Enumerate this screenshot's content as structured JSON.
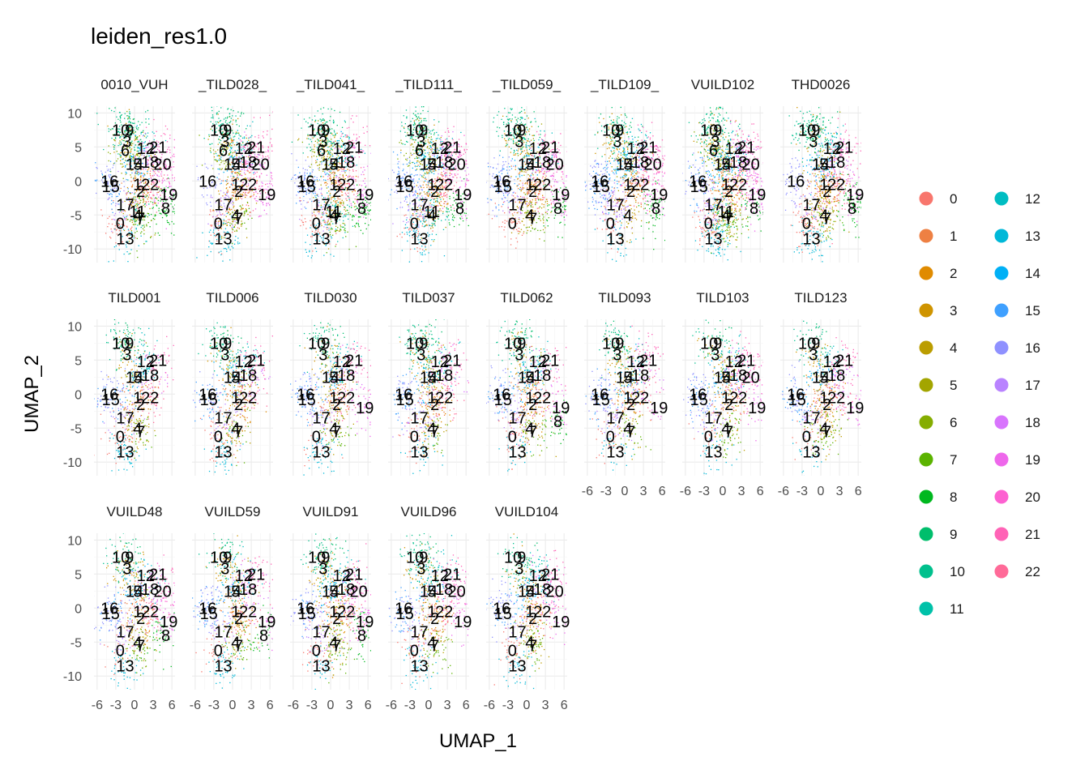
{
  "chart_data": {
    "type": "scatter",
    "title": "leiden_res1.0",
    "xlabel": "UMAP_1",
    "ylabel": "UMAP_2",
    "xlim": [
      -6.5,
      6.5
    ],
    "ylim": [
      -12,
      11
    ],
    "x_ticks": [
      "-6",
      "-3",
      "0",
      "3",
      "6"
    ],
    "y_ticks": [
      "10",
      "5",
      "0",
      "-5",
      "-10"
    ],
    "x_tick_values": [
      -6,
      -3,
      0,
      3,
      6
    ],
    "y_tick_values": [
      10,
      5,
      0,
      -5,
      -10
    ],
    "grid": true,
    "legend_position": "right",
    "legend": {
      "labels": [
        "0",
        "1",
        "2",
        "3",
        "4",
        "5",
        "6",
        "7",
        "8",
        "9",
        "10",
        "11",
        "12",
        "13",
        "14",
        "15",
        "16",
        "17",
        "18",
        "19",
        "20",
        "21",
        "22"
      ],
      "colors": [
        "#F8766D",
        "#EE8043",
        "#E08B00",
        "#CF9400",
        "#BB9D00",
        "#A3A500",
        "#85AD00",
        "#5BB300",
        "#00B81F",
        "#00BE6C",
        "#00C08D",
        "#00C1A9",
        "#00BDC2",
        "#00B8D8",
        "#00B0F6",
        "#3FA0FF",
        "#8F91FF",
        "#B983FF",
        "#D874FD",
        "#EE67EB",
        "#FD61D1",
        "#FF63B6",
        "#FF6A98"
      ]
    },
    "cluster_centers": [
      {
        "cluster": "0",
        "x": -2.3,
        "y": -6.2
      },
      {
        "cluster": "1",
        "x": 0.5,
        "y": -0.5
      },
      {
        "cluster": "2",
        "x": 1.0,
        "y": -1.5
      },
      {
        "cluster": "3",
        "x": -1.2,
        "y": 5.8
      },
      {
        "cluster": "4",
        "x": 0.5,
        "y": -5.0
      },
      {
        "cluster": "5",
        "x": 0.5,
        "y": 2.5
      },
      {
        "cluster": "6",
        "x": -1.5,
        "y": 4.5
      },
      {
        "cluster": "7",
        "x": 1.0,
        "y": -5.5
      },
      {
        "cluster": "8",
        "x": 5.0,
        "y": -4.0
      },
      {
        "cluster": "9",
        "x": -0.8,
        "y": 7.5
      },
      {
        "cluster": "10",
        "x": -2.2,
        "y": 7.5
      },
      {
        "cluster": "11",
        "x": 0.5,
        "y": -4.5
      },
      {
        "cluster": "12",
        "x": 1.8,
        "y": 4.8
      },
      {
        "cluster": "13",
        "x": -1.5,
        "y": -8.5
      },
      {
        "cluster": "14",
        "x": 0.0,
        "y": 2.5
      },
      {
        "cluster": "15",
        "x": -3.8,
        "y": -0.8
      },
      {
        "cluster": "16",
        "x": -4.0,
        "y": 0.0
      },
      {
        "cluster": "17",
        "x": -1.5,
        "y": -3.5
      },
      {
        "cluster": "18",
        "x": 2.5,
        "y": 2.8
      },
      {
        "cluster": "19",
        "x": 5.5,
        "y": -2.0
      },
      {
        "cluster": "20",
        "x": 4.5,
        "y": 2.5
      },
      {
        "cluster": "21",
        "x": 3.8,
        "y": 5.0
      },
      {
        "cluster": "22",
        "x": 2.5,
        "y": -0.5
      }
    ],
    "panels": [
      {
        "name": "0010_VUH",
        "labels": [
          "0",
          "2",
          "3",
          "5",
          "6",
          "9",
          "10",
          "12",
          "13",
          "14",
          "15",
          "16",
          "17",
          "18",
          "19",
          "20",
          "21",
          "22",
          "4",
          "7",
          "8",
          "11",
          "1"
        ]
      },
      {
        "name": "_TILD028_",
        "labels": [
          "0",
          "2",
          "3",
          "5",
          "6",
          "9",
          "10",
          "12",
          "13",
          "14",
          "16",
          "17",
          "18",
          "19",
          "20",
          "21",
          "22",
          "4",
          "7",
          "1"
        ]
      },
      {
        "name": "_TILD041_",
        "labels": [
          "0",
          "2",
          "3",
          "5",
          "6",
          "9",
          "10",
          "12",
          "13",
          "14",
          "15",
          "16",
          "17",
          "18",
          "19",
          "21",
          "22",
          "4",
          "7",
          "8",
          "11",
          "1"
        ]
      },
      {
        "name": "_TILD111_",
        "labels": [
          "0",
          "2",
          "3",
          "5",
          "6",
          "9",
          "10",
          "12",
          "13",
          "14",
          "15",
          "16",
          "17",
          "18",
          "19",
          "20",
          "21",
          "22",
          "4",
          "8",
          "11",
          "1"
        ]
      },
      {
        "name": "_TILD059_",
        "labels": [
          "0",
          "2",
          "3",
          "5",
          "9",
          "10",
          "12",
          "14",
          "15",
          "16",
          "17",
          "18",
          "19",
          "20",
          "21",
          "22",
          "4",
          "7",
          "8",
          "1"
        ]
      },
      {
        "name": "_TILD109_",
        "labels": [
          "0",
          "2",
          "3",
          "5",
          "9",
          "10",
          "12",
          "13",
          "14",
          "15",
          "16",
          "17",
          "18",
          "19",
          "20",
          "21",
          "22",
          "4",
          "8",
          "1"
        ]
      },
      {
        "name": "VUILD102",
        "labels": [
          "0",
          "2",
          "3",
          "5",
          "6",
          "9",
          "10",
          "12",
          "13",
          "14",
          "15",
          "16",
          "17",
          "18",
          "19",
          "20",
          "21",
          "22",
          "4",
          "7",
          "8",
          "11",
          "1"
        ]
      },
      {
        "name": "THD0026",
        "labels": [
          "0",
          "2",
          "3",
          "5",
          "9",
          "10",
          "12",
          "13",
          "14",
          "16",
          "17",
          "18",
          "19",
          "21",
          "22",
          "4",
          "7",
          "8",
          "1"
        ]
      },
      {
        "name": "TILD001",
        "labels": [
          "0",
          "2",
          "3",
          "5",
          "9",
          "10",
          "12",
          "13",
          "14",
          "15",
          "16",
          "17",
          "18",
          "21",
          "22",
          "4",
          "7",
          "1"
        ]
      },
      {
        "name": "TILD006",
        "labels": [
          "0",
          "2",
          "3",
          "5",
          "9",
          "10",
          "12",
          "13",
          "14",
          "15",
          "16",
          "17",
          "18",
          "21",
          "22",
          "4",
          "7",
          "1"
        ]
      },
      {
        "name": "TILD030",
        "labels": [
          "0",
          "2",
          "3",
          "5",
          "9",
          "10",
          "12",
          "13",
          "14",
          "15",
          "16",
          "17",
          "18",
          "19",
          "21",
          "22",
          "4",
          "7",
          "1"
        ]
      },
      {
        "name": "TILD037",
        "labels": [
          "0",
          "2",
          "3",
          "5",
          "9",
          "10",
          "12",
          "13",
          "14",
          "15",
          "16",
          "17",
          "18",
          "21",
          "22",
          "4",
          "7",
          "1"
        ]
      },
      {
        "name": "TILD062",
        "labels": [
          "0",
          "2",
          "3",
          "5",
          "9",
          "10",
          "12",
          "13",
          "14",
          "15",
          "16",
          "17",
          "18",
          "19",
          "21",
          "22",
          "4",
          "7",
          "8",
          "1"
        ]
      },
      {
        "name": "TILD093",
        "labels": [
          "0",
          "2",
          "3",
          "5",
          "9",
          "10",
          "12",
          "13",
          "14",
          "15",
          "16",
          "17",
          "18",
          "19",
          "21",
          "22",
          "4",
          "7",
          "1"
        ]
      },
      {
        "name": "TILD103",
        "labels": [
          "0",
          "2",
          "3",
          "5",
          "9",
          "10",
          "12",
          "13",
          "14",
          "15",
          "16",
          "17",
          "18",
          "19",
          "20",
          "21",
          "22",
          "4",
          "7",
          "1"
        ]
      },
      {
        "name": "TILD123",
        "labels": [
          "0",
          "2",
          "3",
          "5",
          "9",
          "10",
          "12",
          "13",
          "14",
          "15",
          "16",
          "17",
          "18",
          "19",
          "21",
          "22",
          "4",
          "7",
          "1"
        ]
      },
      {
        "name": "VUILD48",
        "labels": [
          "0",
          "2",
          "3",
          "5",
          "9",
          "10",
          "12",
          "13",
          "14",
          "15",
          "16",
          "17",
          "18",
          "19",
          "20",
          "21",
          "22",
          "4",
          "7",
          "8",
          "1"
        ]
      },
      {
        "name": "VUILD59",
        "labels": [
          "0",
          "2",
          "3",
          "5",
          "9",
          "10",
          "12",
          "13",
          "14",
          "15",
          "16",
          "17",
          "18",
          "19",
          "21",
          "22",
          "4",
          "7",
          "8",
          "1"
        ]
      },
      {
        "name": "VUILD91",
        "labels": [
          "0",
          "2",
          "3",
          "5",
          "9",
          "10",
          "12",
          "13",
          "14",
          "15",
          "16",
          "17",
          "18",
          "19",
          "20",
          "21",
          "22",
          "4",
          "7",
          "8",
          "1"
        ]
      },
      {
        "name": "VUILD96",
        "labels": [
          "0",
          "2",
          "3",
          "5",
          "9",
          "10",
          "12",
          "13",
          "14",
          "15",
          "16",
          "17",
          "18",
          "19",
          "20",
          "21",
          "22",
          "4",
          "7",
          "1"
        ]
      },
      {
        "name": "VUILD104",
        "labels": [
          "0",
          "2",
          "3",
          "5",
          "9",
          "10",
          "12",
          "13",
          "14",
          "15",
          "16",
          "17",
          "18",
          "19",
          "20",
          "21",
          "22",
          "4",
          "7",
          "1"
        ]
      }
    ]
  }
}
